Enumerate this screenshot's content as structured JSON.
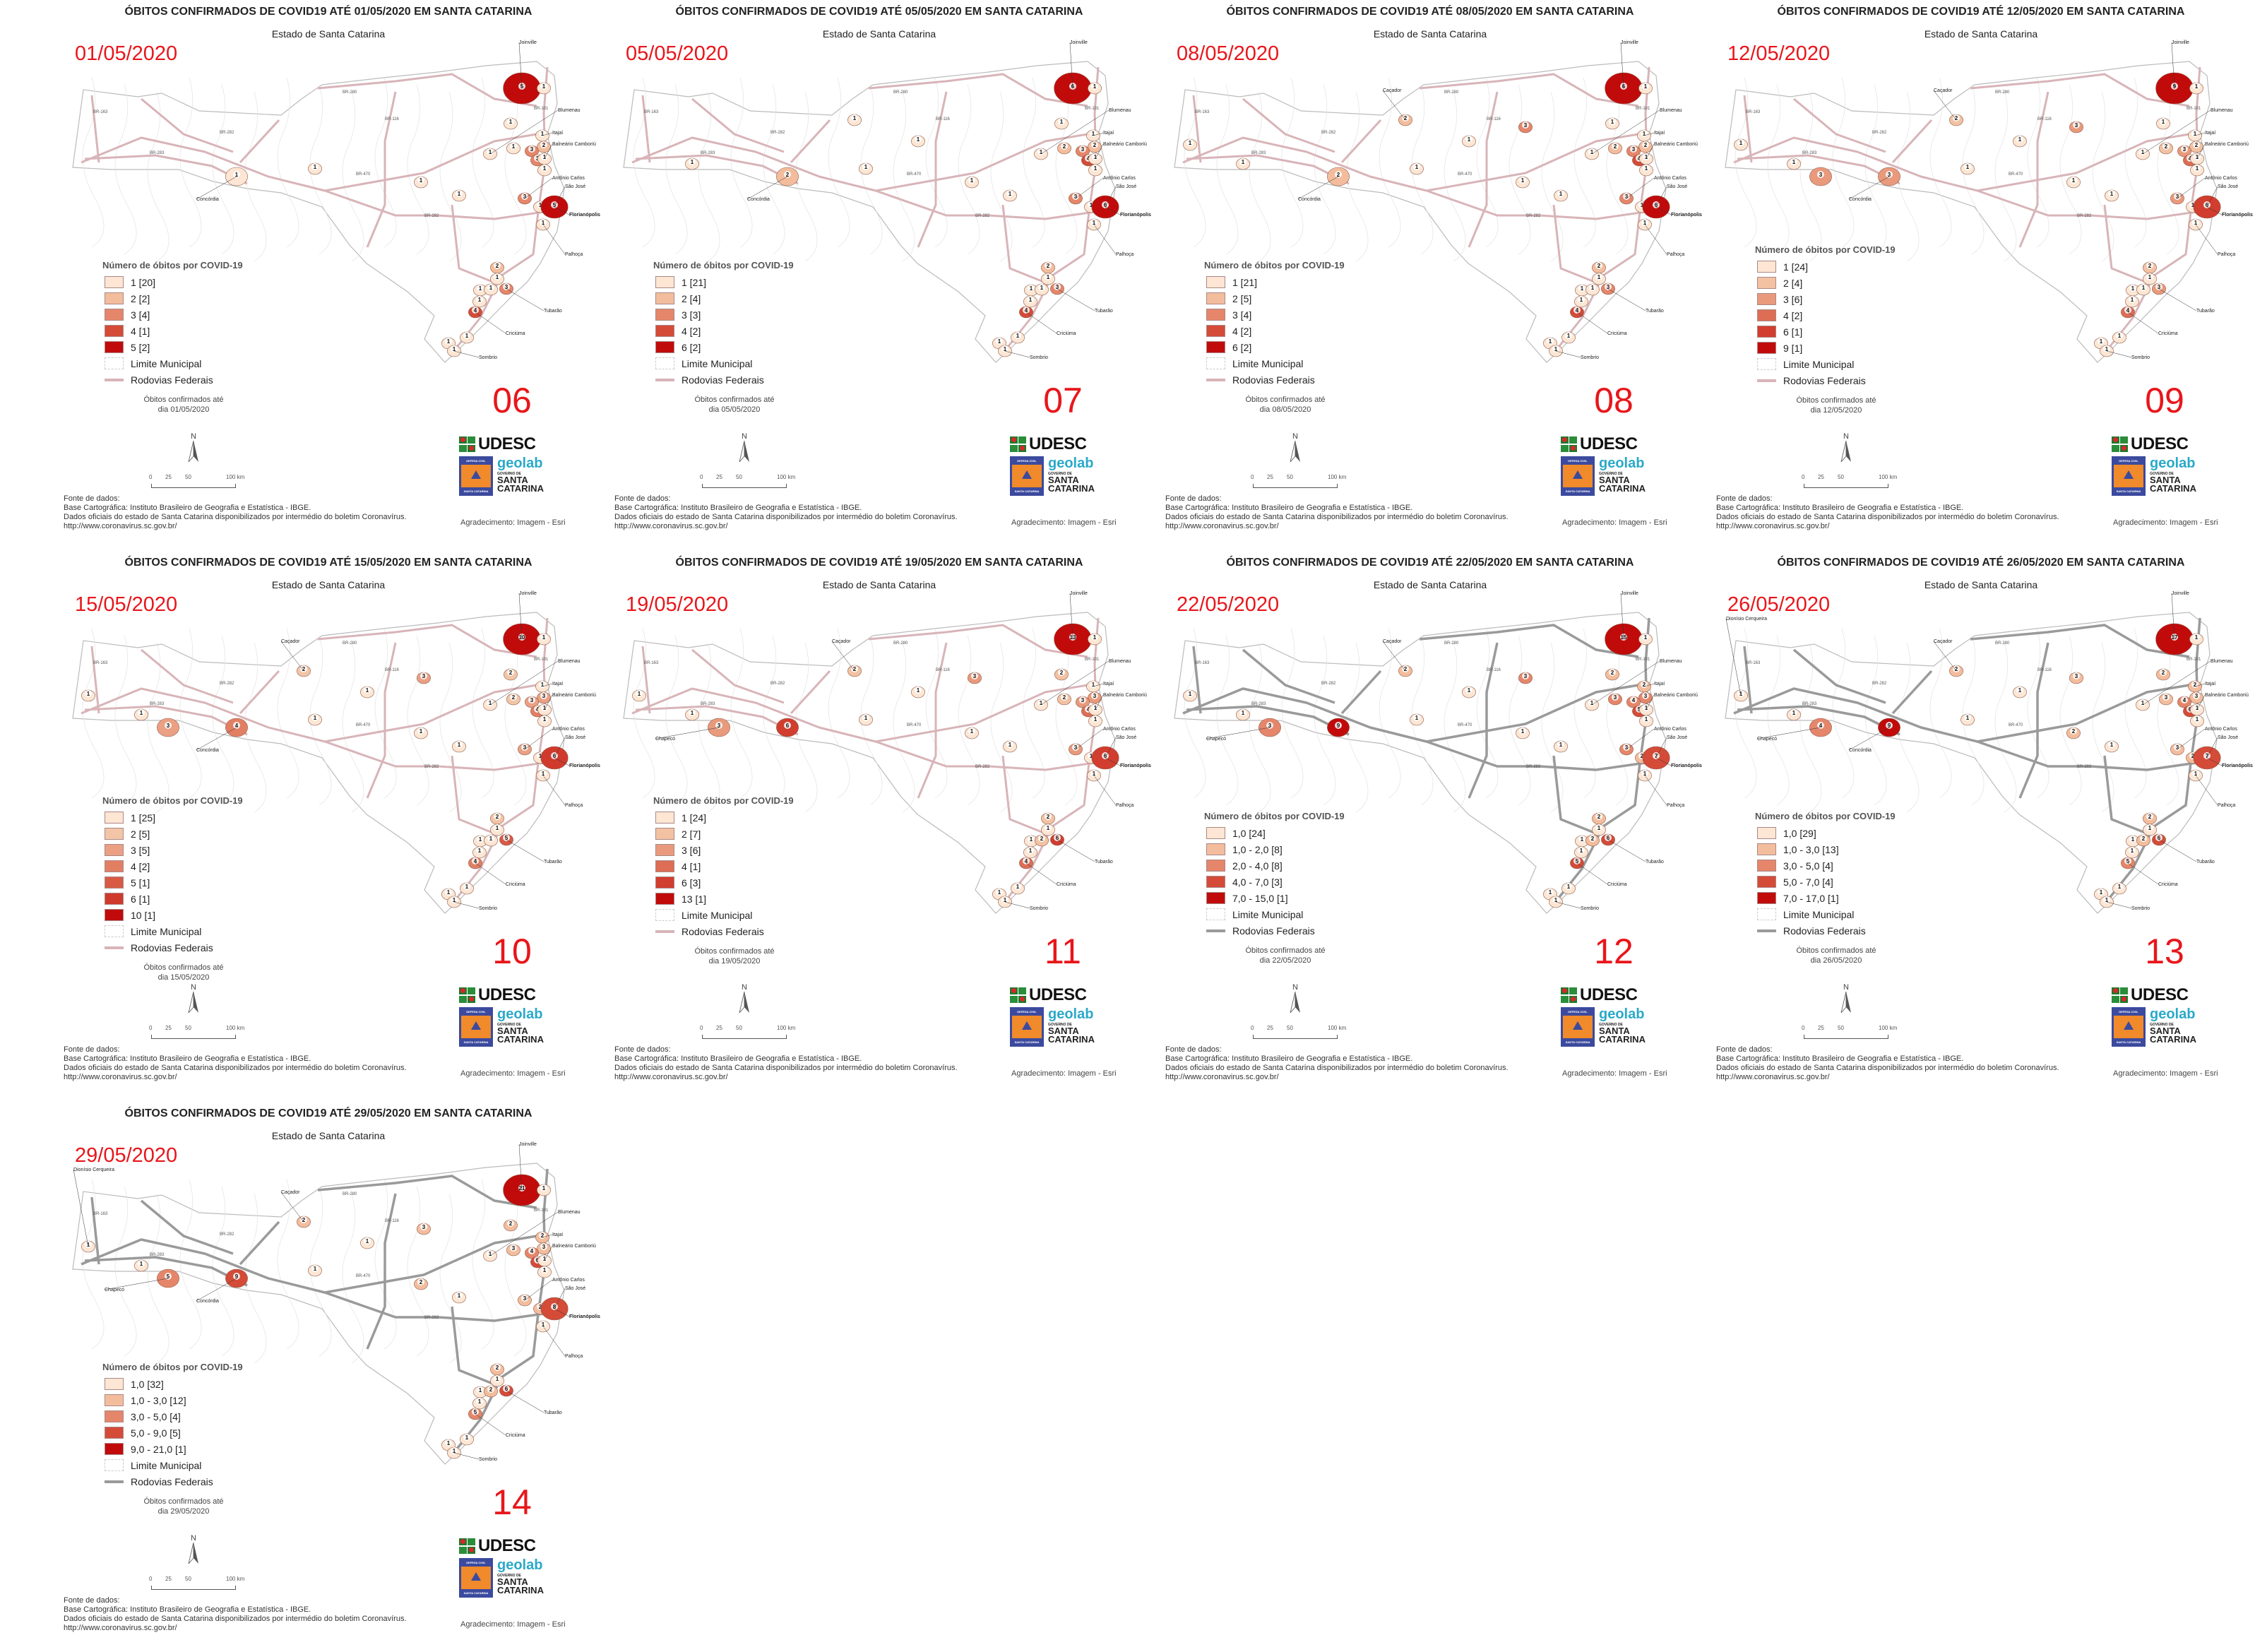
{
  "common": {
    "subtitle": "Estado de Santa Catarina",
    "legend_title": "Número de óbitos por COVID-19",
    "limit_label": "Limite Municipal",
    "roads_label": "Rodovias Federais",
    "note_line1": "Óbitos confirmados até",
    "north": "N",
    "scale": [
      "0",
      "25",
      "50",
      "100 km"
    ],
    "source": [
      "Fonte de dados:",
      "Base Cartográfica: Instituto Brasileiro de Geografia e Estatística - IBGE.",
      "Dados oficiais do estado de Santa Catarina disponibilizados por intermédio do boletim Coronavírus.",
      "http://www.coronavirus.sc.gov.br/"
    ],
    "thanks": "Agradecimento: Imagem - Esri",
    "logo_udesc": "UDESC",
    "logo_geolab": "geolab",
    "logo_defesa_top": "DEFESA CIVIL",
    "logo_defesa_bottom": "SANTA CATARINA",
    "logo_gov_top": "GOVERNO DE",
    "logo_gov_1": "SANTA",
    "logo_gov_2": "CATARINA",
    "road_labels": [
      "BR-280",
      "BR-101",
      "BR-470",
      "BR-282",
      "BR-116",
      "BR-163",
      "BR-282",
      "BR-283"
    ]
  },
  "colors": {
    "accent_red": "#e8161b",
    "road_pink": "#d8b4b8",
    "road_gray": "#9a9a9a",
    "palette5": [
      "#fde6d3",
      "#f3bd9d",
      "#e5866a",
      "#d44b38",
      "#c10b0b"
    ],
    "palette6": [
      "#fde6d3",
      "#f3c2a3",
      "#e99a7c",
      "#dd6d55",
      "#d13d2e",
      "#c10b0b"
    ],
    "palette7": [
      "#fde6d3",
      "#f3c5a7",
      "#eba083",
      "#e27f63",
      "#d85a45",
      "#cf3a2c",
      "#c10b0b"
    ]
  },
  "panels": [
    {
      "title": "ÓBITOS CONFIRMADOS DE COVID19 ATÉ 01/05/2020 EM SANTA CATARINA",
      "date": "01/05/2020",
      "number": "06",
      "note_line2": "dia 01/05/2020",
      "road": "pink",
      "legend": [
        {
          "label": "1 [20]",
          "max": 1
        },
        {
          "label": "2 [2]",
          "max": 2
        },
        {
          "label": "3 [4]",
          "max": 3
        },
        {
          "label": "4 [1]",
          "max": 4
        },
        {
          "label": "5 [2]",
          "max": 5
        }
      ],
      "cities": [
        "Joinville",
        "Blumenau",
        "Itajaí",
        "Balneário Camboriú",
        "Antônio Carlos",
        "São José",
        "Florianópolis",
        "Palhoça",
        "Tubarão",
        "Criciúma",
        "Sombrio",
        "Concórdia"
      ],
      "markers": [
        5,
        1,
        1,
        1,
        1,
        1,
        2,
        3,
        3,
        1,
        1,
        1,
        1,
        1,
        1,
        3,
        1,
        5,
        1,
        2,
        1,
        1,
        1,
        3,
        1,
        4,
        1,
        1,
        1,
        0,
        0,
        0,
        0,
        0,
        0
      ]
    },
    {
      "title": "ÓBITOS CONFIRMADOS DE COVID19 ATÉ 05/05/2020 EM SANTA CATARINA",
      "date": "05/05/2020",
      "number": "07",
      "note_line2": "dia 05/05/2020",
      "road": "pink",
      "legend": [
        {
          "label": "1 [21]",
          "max": 1
        },
        {
          "label": "2 [4]",
          "max": 2
        },
        {
          "label": "3 [3]",
          "max": 3
        },
        {
          "label": "4 [2]",
          "max": 4
        },
        {
          "label": "6 [2]",
          "max": 6
        }
      ],
      "cities": [
        "Joinville",
        "Blumenau",
        "Itajaí",
        "Balneário Camboriú",
        "Antônio Carlos",
        "São José",
        "Florianópolis",
        "Palhoça",
        "Tubarão",
        "Criciúma",
        "Sombrio",
        "Concórdia"
      ],
      "markers": [
        6,
        1,
        1,
        2,
        1,
        1,
        2,
        3,
        4,
        1,
        1,
        2,
        1,
        1,
        1,
        3,
        1,
        6,
        1,
        2,
        1,
        1,
        1,
        3,
        1,
        4,
        1,
        1,
        1,
        0,
        1,
        1,
        0,
        0,
        1
      ]
    },
    {
      "title": "ÓBITOS CONFIRMADOS DE COVID19 ATÉ 08/05/2020 EM SANTA CATARINA",
      "date": "08/05/2020",
      "number": "08",
      "note_line2": "dia 08/05/2020",
      "road": "pink",
      "legend": [
        {
          "label": "1 [21]",
          "max": 1
        },
        {
          "label": "2 [5]",
          "max": 2
        },
        {
          "label": "3 [4]",
          "max": 3
        },
        {
          "label": "4 [2]",
          "max": 4
        },
        {
          "label": "6 [2]",
          "max": 6
        }
      ],
      "cities": [
        "Joinville",
        "Blumenau",
        "Itajaí",
        "Balneário Camboriú",
        "Antônio Carlos",
        "São José",
        "Florianópolis",
        "Palhoça",
        "Tubarão",
        "Criciúma",
        "Sombrio",
        "Concórdia",
        "Caçador"
      ],
      "markers": [
        6,
        1,
        1,
        2,
        1,
        1,
        2,
        3,
        4,
        1,
        1,
        2,
        1,
        1,
        1,
        3,
        1,
        6,
        1,
        2,
        1,
        1,
        1,
        3,
        1,
        4,
        1,
        1,
        1,
        0,
        2,
        1,
        1,
        3,
        1
      ]
    },
    {
      "title": "ÓBITOS CONFIRMADOS DE COVID19 ATÉ 12/05/2020 EM SANTA CATARINA",
      "date": "12/05/2020",
      "number": "09",
      "note_line2": "dia 12/05/2020",
      "road": "pink",
      "legend": [
        {
          "label": "1 [24]",
          "max": 1
        },
        {
          "label": "2 [4]",
          "max": 2
        },
        {
          "label": "3 [6]",
          "max": 3
        },
        {
          "label": "4 [2]",
          "max": 4
        },
        {
          "label": "6 [1]",
          "max": 6
        },
        {
          "label": "9 [1]",
          "max": 9
        }
      ],
      "cities": [
        "Joinville",
        "Blumenau",
        "Itajaí",
        "Balneário Camboriú",
        "Antônio Carlos",
        "São José",
        "Florianópolis",
        "Palhoça",
        "Tubarão",
        "Criciúma",
        "Sombrio",
        "Concórdia",
        "Caçador"
      ],
      "markers": [
        9,
        1,
        1,
        2,
        1,
        1,
        2,
        3,
        4,
        1,
        1,
        3,
        1,
        1,
        1,
        3,
        1,
        6,
        1,
        2,
        1,
        1,
        1,
        3,
        1,
        4,
        1,
        1,
        1,
        3,
        2,
        1,
        1,
        3,
        1
      ]
    },
    {
      "title": "ÓBITOS CONFIRMADOS DE COVID19 ATÉ 15/05/2020 EM SANTA CATARINA",
      "date": "15/05/2020",
      "number": "10",
      "note_line2": "dia 15/05/2020",
      "road": "pink",
      "legend": [
        {
          "label": "1 [25]",
          "max": 1
        },
        {
          "label": "2 [5]",
          "max": 2
        },
        {
          "label": "3 [5]",
          "max": 3
        },
        {
          "label": "4 [2]",
          "max": 4
        },
        {
          "label": "5 [1]",
          "max": 5
        },
        {
          "label": "6 [1]",
          "max": 6
        },
        {
          "label": "10 [1]",
          "max": 10
        }
      ],
      "cities": [
        "Joinville",
        "Blumenau",
        "Itajaí",
        "Balneário Camboriú",
        "Antônio Carlos",
        "São José",
        "Florianópolis",
        "Palhoça",
        "Tubarão",
        "Criciúma",
        "Sombrio",
        "Concórdia",
        "Caçador"
      ],
      "markers": [
        10,
        1,
        2,
        2,
        1,
        1,
        3,
        3,
        4,
        1,
        1,
        4,
        1,
        1,
        1,
        3,
        1,
        6,
        1,
        2,
        1,
        1,
        1,
        5,
        1,
        4,
        1,
        1,
        1,
        3,
        2,
        1,
        1,
        3,
        1
      ]
    },
    {
      "title": "ÓBITOS CONFIRMADOS DE COVID19 ATÉ 19/05/2020 EM SANTA CATARINA",
      "date": "19/05/2020",
      "number": "11",
      "note_line2": "dia 19/05/2020",
      "road": "pink",
      "legend": [
        {
          "label": "1 [24]",
          "max": 1
        },
        {
          "label": "2 [7]",
          "max": 2
        },
        {
          "label": "3 [6]",
          "max": 3
        },
        {
          "label": "4 [1]",
          "max": 4
        },
        {
          "label": "6 [3]",
          "max": 6
        },
        {
          "label": "13 [1]",
          "max": 13
        }
      ],
      "cities": [
        "Joinville",
        "Blumenau",
        "Itajaí",
        "Balneário Camboriú",
        "Antônio Carlos",
        "São José",
        "Florianópolis",
        "Palhoça",
        "Tubarão",
        "Criciúma",
        "Sombrio",
        "Caçador",
        "Chapecó"
      ],
      "markers": [
        13,
        1,
        2,
        2,
        1,
        1,
        3,
        3,
        4,
        1,
        1,
        6,
        1,
        1,
        1,
        3,
        1,
        6,
        1,
        2,
        1,
        1,
        2,
        6,
        1,
        4,
        1,
        1,
        1,
        3,
        2,
        1,
        1,
        3,
        1
      ]
    },
    {
      "title": "ÓBITOS CONFIRMADOS DE COVID19 ATÉ 22/05/2020 EM SANTA CATARINA",
      "date": "22/05/2020",
      "number": "12",
      "note_line2": "dia 22/05/2020",
      "road": "gray",
      "legend": [
        {
          "label": "1,0 [24]",
          "max": 1
        },
        {
          "label": "1,0 - 2,0 [8]",
          "max": 2
        },
        {
          "label": "2,0 - 4,0 [8]",
          "max": 4
        },
        {
          "label": "4,0 - 7,0 [3]",
          "max": 7
        },
        {
          "label": "7,0 - 15,0 [1]",
          "max": 15
        }
      ],
      "cities": [
        "Joinville",
        "Blumenau",
        "Itajaí",
        "Balneário Camboriú",
        "Antônio Carlos",
        "São José",
        "Florianópolis",
        "Palhoça",
        "Tubarão",
        "Criciúma",
        "Sombrio",
        "Caçador",
        "Chapecó"
      ],
      "markers": [
        15,
        1,
        2,
        3,
        1,
        2,
        3,
        4,
        5,
        1,
        1,
        9,
        1,
        1,
        1,
        3,
        2,
        7,
        1,
        2,
        1,
        1,
        2,
        6,
        1,
        5,
        1,
        1,
        1,
        3,
        2,
        1,
        1,
        3,
        1
      ]
    },
    {
      "title": "ÓBITOS CONFIRMADOS DE COVID19 ATÉ 26/05/2020 EM SANTA CATARINA",
      "date": "26/05/2020",
      "number": "13",
      "note_line2": "dia 26/05/2020",
      "road": "gray",
      "legend": [
        {
          "label": "1,0 [29]",
          "max": 1
        },
        {
          "label": "1,0 - 3,0 [13]",
          "max": 3
        },
        {
          "label": "3,0 - 5,0 [4]",
          "max": 5
        },
        {
          "label": "5,0 - 7,0 [4]",
          "max": 7
        },
        {
          "label": "7,0 - 17,0 [1]",
          "max": 17
        }
      ],
      "cities": [
        "Joinville",
        "Blumenau",
        "Itajaí",
        "Balneário Camboriú",
        "Antônio Carlos",
        "São José",
        "Florianópolis",
        "Palhoça",
        "Tubarão",
        "Criciúma",
        "Sombrio",
        "Concórdia",
        "Caçador",
        "Chapecó",
        "Dionísio Cerqueira"
      ],
      "markers": [
        17,
        1,
        2,
        3,
        1,
        2,
        3,
        4,
        6,
        1,
        1,
        9,
        1,
        2,
        1,
        3,
        2,
        7,
        1,
        2,
        1,
        1,
        2,
        6,
        1,
        5,
        1,
        1,
        1,
        4,
        2,
        1,
        1,
        3,
        1
      ]
    },
    {
      "title": "ÓBITOS CONFIRMADOS DE COVID19 ATÉ 29/05/2020 EM SANTA CATARINA",
      "date": "29/05/2020",
      "number": "14",
      "note_line2": "dia 29/05/2020",
      "road": "gray",
      "legend": [
        {
          "label": "1,0 [32]",
          "max": 1
        },
        {
          "label": "1,0 - 3,0 [12]",
          "max": 3
        },
        {
          "label": "3,0 - 5,0 [4]",
          "max": 5
        },
        {
          "label": "5,0 - 9,0 [5]",
          "max": 9
        },
        {
          "label": "9,0 - 21,0 [1]",
          "max": 21
        }
      ],
      "cities": [
        "Joinville",
        "Blumenau",
        "Itajaí",
        "Balneário Camboriú",
        "Antônio Carlos",
        "São José",
        "Florianópolis",
        "Palhoça",
        "Tubarão",
        "Criciúma",
        "Sombrio",
        "Concórdia",
        "Caçador",
        "Chapecó",
        "Dionísio Cerqueira"
      ],
      "markers": [
        21,
        1,
        2,
        3,
        1,
        2,
        3,
        4,
        6,
        1,
        1,
        9,
        1,
        2,
        1,
        3,
        2,
        8,
        1,
        2,
        1,
        1,
        2,
        6,
        1,
        5,
        1,
        1,
        1,
        5,
        2,
        1,
        1,
        3,
        1
      ]
    }
  ]
}
